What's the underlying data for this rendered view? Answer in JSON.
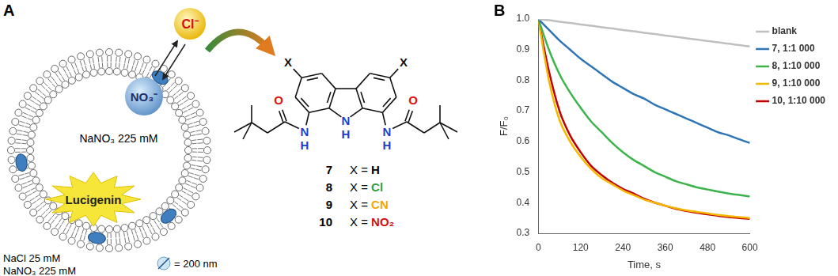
{
  "panel_a": {
    "label": "A",
    "anion_out": "Cl⁻",
    "anion_in": "NO₃⁻",
    "inside_solution": "NaNO₃ 225 mM",
    "dye": "Lucigenin",
    "outside_solution": [
      "NaCl 25 mM",
      "NaNO₃ 225 mM"
    ],
    "vesicle_size": "= 200 nm",
    "structure": {
      "substituent": "X",
      "nitrogen": "N",
      "hydrogen": "H",
      "oxygen": "O"
    },
    "compounds": [
      {
        "number": "7",
        "label": "X = ",
        "substituent": "H",
        "color": "#000000"
      },
      {
        "number": "8",
        "label": "X = ",
        "substituent": "Cl",
        "color": "#2e9e3e"
      },
      {
        "number": "9",
        "label": "X = ",
        "substituent": "CN",
        "color": "#f0a800"
      },
      {
        "number": "10",
        "label": "X = ",
        "substituent": "NO₂",
        "color": "#d01010"
      }
    ]
  },
  "panel_b": {
    "label": "B"
  },
  "chart_data": {
    "type": "line",
    "x_label": "Time, s",
    "y_label": "F/F₀",
    "x": [
      0,
      30,
      60,
      90,
      120,
      150,
      180,
      210,
      240,
      270,
      300,
      330,
      360,
      390,
      420,
      450,
      480,
      510,
      540,
      570,
      600
    ],
    "series": [
      {
        "name": "blank",
        "color": "#bfbfbf",
        "values": [
          1.0,
          0.996,
          0.991,
          0.987,
          0.982,
          0.978,
          0.973,
          0.969,
          0.964,
          0.96,
          0.955,
          0.951,
          0.946,
          0.942,
          0.937,
          0.933,
          0.928,
          0.924,
          0.919,
          0.915,
          0.91
        ]
      },
      {
        "name": "7, 1:1 000",
        "color": "#2e75b6",
        "values": [
          1.0,
          0.965,
          0.93,
          0.9,
          0.87,
          0.845,
          0.82,
          0.795,
          0.775,
          0.755,
          0.74,
          0.72,
          0.705,
          0.69,
          0.675,
          0.66,
          0.645,
          0.63,
          0.62,
          0.607,
          0.595
        ]
      },
      {
        "name": "8, 1:10 000",
        "color": "#3cb44b",
        "values": [
          1.0,
          0.9,
          0.82,
          0.76,
          0.71,
          0.665,
          0.63,
          0.595,
          0.565,
          0.54,
          0.52,
          0.5,
          0.485,
          0.47,
          0.46,
          0.45,
          0.443,
          0.436,
          0.43,
          0.425,
          0.42
        ]
      },
      {
        "name": "9, 1:10 000",
        "color": "#f5b800",
        "values": [
          1.0,
          0.8,
          0.67,
          0.6,
          0.55,
          0.51,
          0.48,
          0.46,
          0.44,
          0.425,
          0.41,
          0.4,
          0.39,
          0.382,
          0.375,
          0.37,
          0.365,
          0.36,
          0.356,
          0.353,
          0.35
        ]
      },
      {
        "name": "10, 1:10 000",
        "color": "#c00000",
        "values": [
          1.0,
          0.83,
          0.7,
          0.62,
          0.565,
          0.52,
          0.49,
          0.465,
          0.445,
          0.43,
          0.413,
          0.4,
          0.39,
          0.38,
          0.373,
          0.367,
          0.362,
          0.357,
          0.353,
          0.35,
          0.347
        ]
      }
    ],
    "xlim": [
      0,
      600
    ],
    "xticks": [
      0,
      120,
      240,
      360,
      480,
      600
    ],
    "ylim": [
      0.3,
      1.0
    ],
    "yticks": [
      0.3,
      0.4,
      0.5,
      0.6,
      0.7,
      0.8,
      0.9,
      {
        "value": 1.0,
        "label": "1.0"
      }
    ],
    "grid": false,
    "legend": "right",
    "line_style": "solid",
    "marker": "none"
  }
}
